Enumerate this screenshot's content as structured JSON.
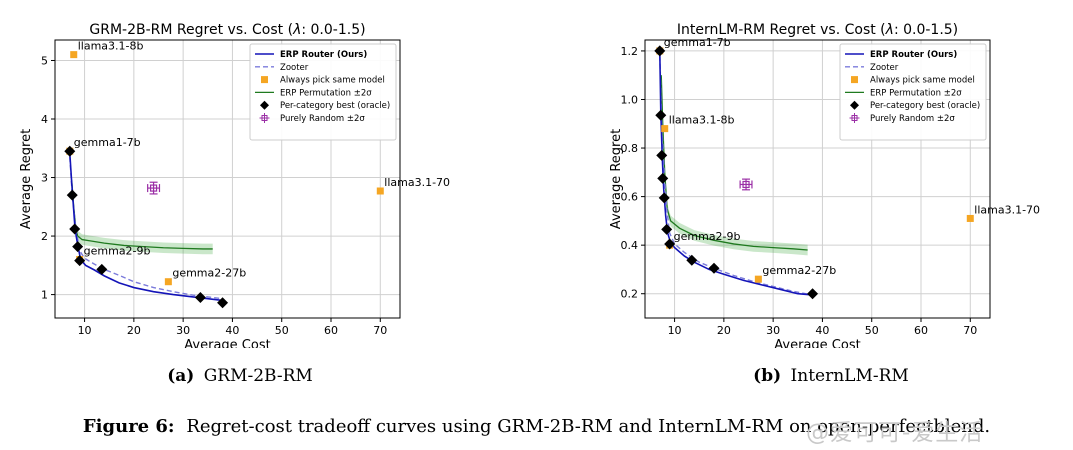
{
  "chart_data": [
    {
      "type": "line",
      "panel": "a",
      "title_prefix": "GRM-2B-RM Regret vs. Cost (",
      "title_lambda": "λ",
      "title_suffix": ": 0.0-1.5)",
      "xlabel": "Average Cost",
      "ylabel": "Average Regret",
      "xlim": [
        4,
        74
      ],
      "ylim": [
        0.6,
        5.35
      ],
      "xticks": [
        10,
        20,
        30,
        40,
        50,
        60,
        70
      ],
      "yticks": [
        1,
        2,
        3,
        4,
        5
      ],
      "legend": [
        "ERP Router (Ours)",
        "Zooter",
        "Always pick same model",
        "ERP Permutation ±2σ",
        "Per-category best (oracle)",
        "Purely Random ±2σ"
      ],
      "erp_router": [
        [
          7.0,
          3.42
        ],
        [
          7.4,
          2.9
        ],
        [
          7.7,
          2.55
        ],
        [
          8.0,
          2.2
        ],
        [
          8.3,
          2.0
        ],
        [
          8.6,
          1.85
        ],
        [
          9.2,
          1.6
        ],
        [
          10.2,
          1.5
        ],
        [
          12,
          1.42
        ],
        [
          14,
          1.32
        ],
        [
          17,
          1.2
        ],
        [
          20,
          1.12
        ],
        [
          24,
          1.05
        ],
        [
          28,
          1.0
        ],
        [
          32,
          0.96
        ],
        [
          35,
          0.93
        ],
        [
          38,
          0.9
        ]
      ],
      "zooter": [
        [
          7.0,
          3.35
        ],
        [
          7.5,
          2.7
        ],
        [
          8.2,
          2.15
        ],
        [
          9.0,
          1.75
        ],
        [
          10,
          1.62
        ],
        [
          12,
          1.52
        ],
        [
          14,
          1.43
        ],
        [
          17,
          1.33
        ],
        [
          20,
          1.22
        ],
        [
          24,
          1.12
        ],
        [
          28,
          1.05
        ],
        [
          32,
          0.99
        ],
        [
          36,
          0.95
        ],
        [
          38,
          0.93
        ]
      ],
      "erp_perm": [
        [
          7.4,
          2.95
        ],
        [
          7.8,
          2.5
        ],
        [
          8.2,
          2.15
        ],
        [
          8.6,
          2.0
        ],
        [
          9.5,
          1.94
        ],
        [
          11,
          1.92
        ],
        [
          14,
          1.88
        ],
        [
          18,
          1.84
        ],
        [
          22,
          1.82
        ],
        [
          26,
          1.8
        ],
        [
          30,
          1.79
        ],
        [
          34,
          1.78
        ],
        [
          36,
          1.78
        ]
      ],
      "erp_perm_band": 0.09,
      "same_model": [
        {
          "name": "llama3.1-8b",
          "x": 7.8,
          "y": 5.1
        },
        {
          "name": "gemma1-7b",
          "x": 7.0,
          "y": 3.45
        },
        {
          "name": "gemma2-9b",
          "x": 9.0,
          "y": 1.6
        },
        {
          "name": "gemma2-27b",
          "x": 27.0,
          "y": 1.22
        },
        {
          "name": "llama3.1-70b",
          "x": 70.0,
          "y": 2.77
        }
      ],
      "oracle": [
        [
          7.0,
          3.45
        ],
        [
          7.5,
          2.7
        ],
        [
          8.0,
          2.12
        ],
        [
          8.6,
          1.82
        ],
        [
          9.0,
          1.58
        ],
        [
          13.5,
          1.43
        ],
        [
          33.5,
          0.95
        ],
        [
          38.0,
          0.86
        ]
      ],
      "random": {
        "x": 24.0,
        "y": 2.82,
        "xerr": 1.2,
        "yerr": 0.1
      }
    },
    {
      "type": "line",
      "panel": "b",
      "title_prefix": "InternLM-RM Regret vs. Cost (",
      "title_lambda": "λ",
      "title_suffix": ": 0.0-1.5)",
      "xlabel": "Average Cost",
      "ylabel": "Average Regret",
      "xlim": [
        4,
        74
      ],
      "ylim": [
        0.1,
        1.245
      ],
      "xticks": [
        10,
        20,
        30,
        40,
        50,
        60,
        70
      ],
      "yticks": [
        0.2,
        0.4,
        0.6,
        0.8,
        1.0,
        1.2
      ],
      "yticklabels": [
        "0.2",
        "0.4",
        "0.6",
        "0.8",
        "1.0",
        "1.2"
      ],
      "legend": [
        "ERP Router (Ours)",
        "Zooter",
        "Always pick same model",
        "ERP Permutation ±2σ",
        "Per-category best (oracle)",
        "Purely Random ±2σ"
      ],
      "erp_router": [
        [
          7.0,
          1.2
        ],
        [
          7.2,
          0.95
        ],
        [
          7.5,
          0.76
        ],
        [
          7.8,
          0.63
        ],
        [
          8.2,
          0.52
        ],
        [
          8.6,
          0.45
        ],
        [
          9.2,
          0.41
        ],
        [
          10,
          0.39
        ],
        [
          12,
          0.355
        ],
        [
          14,
          0.33
        ],
        [
          17,
          0.3
        ],
        [
          20,
          0.28
        ],
        [
          24,
          0.255
        ],
        [
          28,
          0.235
        ],
        [
          32,
          0.215
        ],
        [
          35,
          0.2
        ],
        [
          38,
          0.195
        ]
      ],
      "zooter": [
        [
          7.0,
          1.18
        ],
        [
          7.4,
          0.9
        ],
        [
          7.9,
          0.7
        ],
        [
          8.4,
          0.55
        ],
        [
          9.0,
          0.45
        ],
        [
          10,
          0.405
        ],
        [
          12,
          0.37
        ],
        [
          15,
          0.33
        ],
        [
          18,
          0.305
        ],
        [
          22,
          0.275
        ],
        [
          26,
          0.25
        ],
        [
          30,
          0.23
        ],
        [
          34,
          0.21
        ],
        [
          38,
          0.195
        ]
      ],
      "erp_perm": [
        [
          7.3,
          1.1
        ],
        [
          7.6,
          0.9
        ],
        [
          8.0,
          0.7
        ],
        [
          8.5,
          0.55
        ],
        [
          9.2,
          0.5
        ],
        [
          11,
          0.47
        ],
        [
          14,
          0.44
        ],
        [
          18,
          0.42
        ],
        [
          22,
          0.405
        ],
        [
          26,
          0.395
        ],
        [
          30,
          0.39
        ],
        [
          34,
          0.385
        ],
        [
          37,
          0.38
        ]
      ],
      "erp_perm_band": 0.022,
      "same_model": [
        {
          "name": "gemma1-7b",
          "x": 7.0,
          "y": 1.2
        },
        {
          "name": "llama3.1-8b",
          "x": 8.0,
          "y": 0.88
        },
        {
          "name": "gemma2-9b",
          "x": 9.0,
          "y": 0.4
        },
        {
          "name": "gemma2-27b",
          "x": 27.0,
          "y": 0.26
        },
        {
          "name": "llama3.1-70b",
          "x": 70.0,
          "y": 0.51
        }
      ],
      "oracle": [
        [
          7.0,
          1.2
        ],
        [
          7.2,
          0.935
        ],
        [
          7.4,
          0.77
        ],
        [
          7.6,
          0.675
        ],
        [
          7.9,
          0.595
        ],
        [
          8.4,
          0.465
        ],
        [
          9.0,
          0.405
        ],
        [
          13.5,
          0.338
        ],
        [
          18.0,
          0.305
        ],
        [
          38.0,
          0.2
        ]
      ],
      "random": {
        "x": 24.5,
        "y": 0.65,
        "xerr": 1.2,
        "yerr": 0.022
      }
    }
  ],
  "subcaptions": [
    {
      "tag": "(a)",
      "text": "GRM-2B-RM"
    },
    {
      "tag": "(b)",
      "text": "InternLM-RM"
    }
  ],
  "caption": {
    "label": "Figure 6:",
    "text": "Regret-cost tradeoff curves using GRM-2B-RM and InternLM-RM on open-perfectblend."
  },
  "watermark": "@爱可可-爱生活"
}
